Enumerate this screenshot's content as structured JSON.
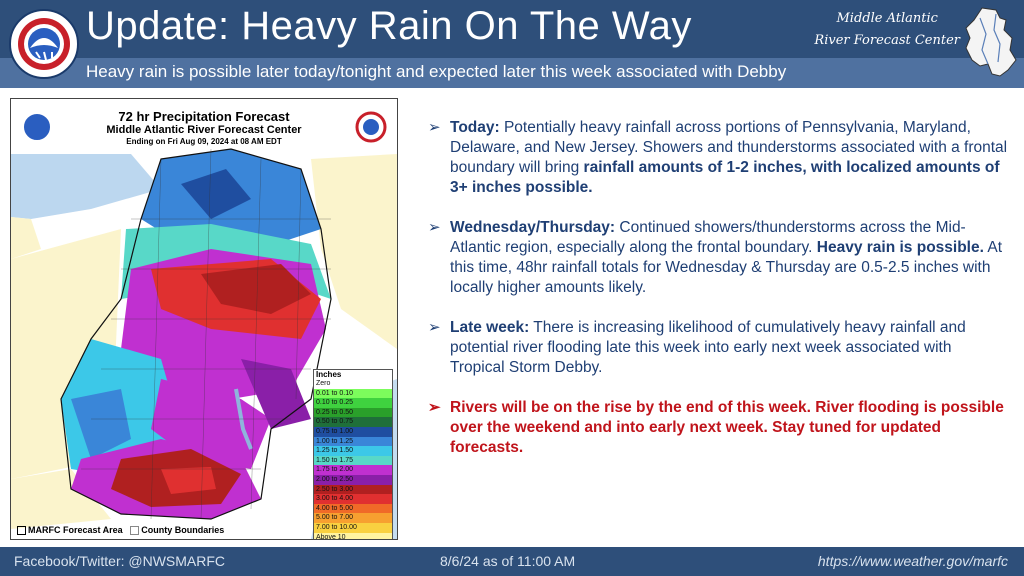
{
  "header": {
    "title": "Update: Heavy Rain On The Way",
    "subtitle": "Heavy rain is possible later today/tonight and expected later this week associated with Debby",
    "center_name_line1": "Middle Atlantic",
    "center_name_line2": "River Forecast Center",
    "logo_icon": "nws-logo-icon",
    "region_icon": "mid-atlantic-region-icon"
  },
  "map": {
    "title": "72 hr Precipitation Forecast",
    "subtitle": "Middle Atlantic River Forecast Center",
    "ending": "Ending on Fri Aug 09, 2024 at 08 AM EDT",
    "legend_title": "Inches",
    "legend": [
      {
        "label": "Zero",
        "color": "#ffffff"
      },
      {
        "label": "0.01 to 0.10",
        "color": "#7cfc5c"
      },
      {
        "label": "0.10 to 0.25",
        "color": "#3fd23f"
      },
      {
        "label": "0.25 to 0.50",
        "color": "#2aa02a"
      },
      {
        "label": "0.50 to 0.75",
        "color": "#1f6f3a"
      },
      {
        "label": "0.75 to 1.00",
        "color": "#1f4ea0"
      },
      {
        "label": "1.00 to 1.25",
        "color": "#3a86d8"
      },
      {
        "label": "1.25 to 1.50",
        "color": "#3cc8e8"
      },
      {
        "label": "1.50 to 1.75",
        "color": "#58d8c8"
      },
      {
        "label": "1.75 to 2.00",
        "color": "#c030d0"
      },
      {
        "label": "2.00 to 2.50",
        "color": "#8a1fa8"
      },
      {
        "label": "2.50 to 3.00",
        "color": "#b02020"
      },
      {
        "label": "3.00 to 4.00",
        "color": "#e03030"
      },
      {
        "label": "4.00 to 5.00",
        "color": "#f06a28"
      },
      {
        "label": "5.00 to 7.00",
        "color": "#f7a030"
      },
      {
        "label": "7.00 to 10.00",
        "color": "#f9d040"
      },
      {
        "label": "Above 10",
        "color": "#fff3a0"
      }
    ],
    "key_forecast_area": "MARFC Forecast Area",
    "key_county": "County Boundaries"
  },
  "bullets": {
    "today_lead": "Today:",
    "today_text": " Potentially heavy rainfall across portions of Pennsylvania, Maryland, Delaware, and New Jersey. Showers and thunderstorms associated with a frontal boundary will bring ",
    "today_bold": "rainfall amounts of 1-2 inches, with localized amounts of 3+ inches possible.",
    "wed_lead": "Wednesday/Thursday:",
    "wed_text1": " Continued showers/thunderstorms across the Mid-Atlantic region, especially along the frontal boundary. ",
    "wed_bold": "Heavy rain is possible.",
    "wed_text2": " At this time, 48hr rainfall totals for Wednesday & Thursday are 0.5-2.5 inches with locally higher amounts likely.",
    "late_lead": "Late week:",
    "late_text": " There is increasing likelihood of cumulatively heavy rainfall and potential river flooding late this week into early next week associated with Tropical Storm Debby.",
    "warning": "Rivers will be on the rise by the end of this week. River flooding is possible over the weekend and into early next week. Stay tuned for updated forecasts."
  },
  "footer": {
    "social": "Facebook/Twitter: @NWSMARFC",
    "timestamp": "8/6/24 as of 11:00 AM",
    "url": "https://www.weather.gov/marfc"
  },
  "colors": {
    "header_bg": "#2e4f7a",
    "subbar_bg": "#4f71a0",
    "bullet_text": "#1f3f74",
    "warning_text": "#c0141b"
  }
}
